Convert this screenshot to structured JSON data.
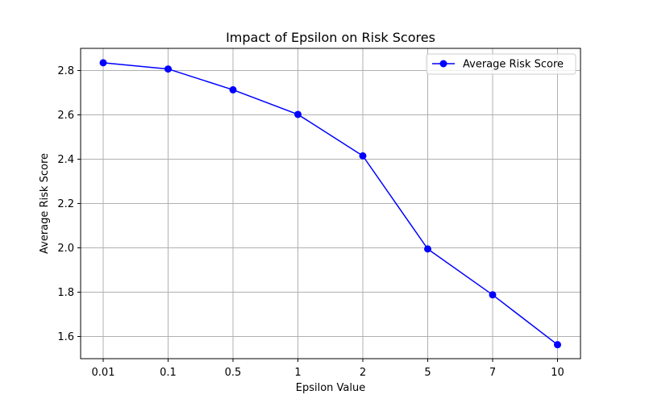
{
  "chart_data": {
    "type": "line",
    "title": "Impact of Epsilon on Risk Scores",
    "xlabel": "Epsilon Value",
    "ylabel": "Average Risk Score",
    "categories": [
      "0.01",
      "0.1",
      "0.5",
      "1",
      "2",
      "5",
      "7",
      "10"
    ],
    "series": [
      {
        "name": "Average Risk Score",
        "values": [
          2.835,
          2.807,
          2.713,
          2.602,
          2.415,
          1.995,
          1.788,
          1.563
        ],
        "color": "#0000ff",
        "marker": "circle"
      }
    ],
    "ylim": [
      1.5,
      2.9
    ],
    "yticks": [
      1.6,
      1.8,
      2.0,
      2.2,
      2.4,
      2.6,
      2.8
    ],
    "ytick_labels": [
      "1.6",
      "1.8",
      "2.0",
      "2.2",
      "2.4",
      "2.6",
      "2.8"
    ],
    "grid": true,
    "grid_color": "#b0b0b0",
    "legend_position": "top-right"
  }
}
